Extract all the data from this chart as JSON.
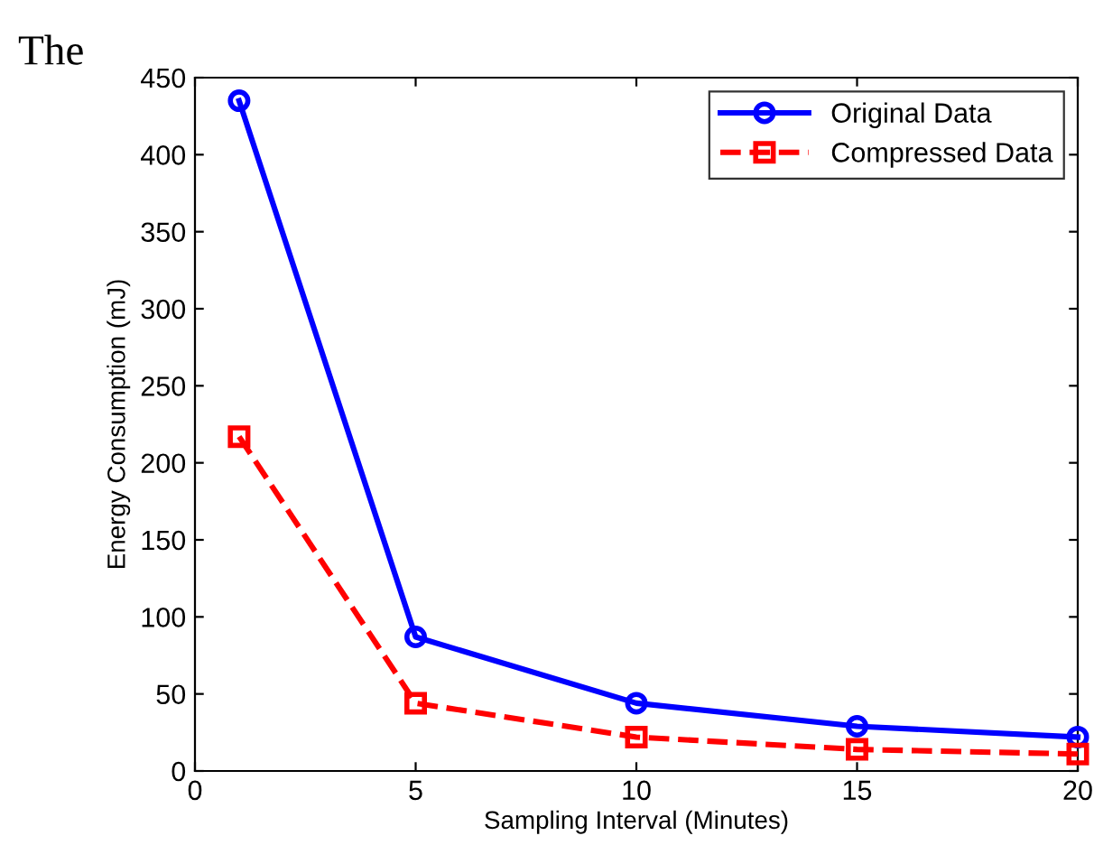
{
  "chart_data": {
    "type": "line",
    "xlabel": "Sampling Interval (Minutes)",
    "ylabel": "Energy Consumption (mJ)",
    "annotations": [
      "The"
    ],
    "x": [
      1,
      5,
      10,
      15,
      20
    ],
    "series": [
      {
        "name": "Original Data",
        "color": "#0000ff",
        "values": [
          435,
          87,
          44,
          29,
          22
        ],
        "marker": "circle",
        "line_style": "solid"
      },
      {
        "name": "Compressed Data",
        "color": "#ff0000",
        "values": [
          217,
          44,
          22,
          14,
          11
        ],
        "marker": "square",
        "line_style": "dashed"
      }
    ],
    "xlim": [
      0,
      20
    ],
    "xticks": [
      0,
      5,
      10,
      15,
      20
    ],
    "ylim": [
      0,
      450
    ],
    "yticks": [
      0,
      50,
      100,
      150,
      200,
      250,
      300,
      350,
      400,
      450
    ],
    "grid": false,
    "legend": "top right"
  }
}
